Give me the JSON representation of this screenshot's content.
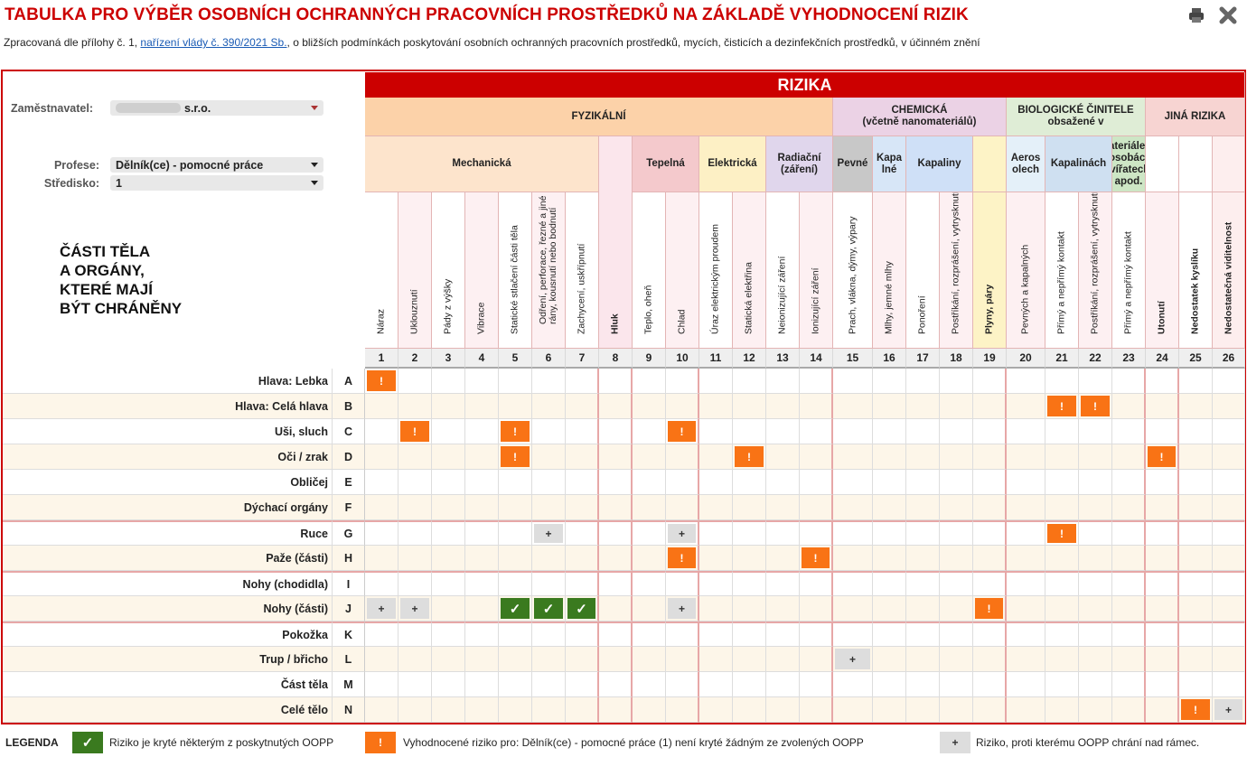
{
  "title": "TABULKA PRO VÝBĚR OSOBNÍCH OCHRANNÝCH PRACOVNÍCH PROSTŘEDKŮ NA ZÁKLADĚ VYHODNOCENÍ RIZIK",
  "subtitle": {
    "before": "Zpracovaná dle přílohy č. 1, ",
    "link": "nařízení vlády č. 390/2021 Sb.",
    "after": ", o bližších podmínkách poskytování osobních ochranných pracovních prostředků, mycích, čisticích a dezinfekčních prostředků, v účinném znění"
  },
  "controls": {
    "employer_label": "Zaměstnavatel:",
    "employer_value": "s.r.o.",
    "profession_label": "Profese:",
    "profession_value": "Dělník(ce) - pomocné práce",
    "center_label": "Středisko:",
    "center_value": "1"
  },
  "body_parts_heading": [
    "ČÁSTI TĚLA",
    "A ORGÁNY,",
    "KTERÉ MAJÍ",
    "BÝT CHRÁNĚNY"
  ],
  "header": {
    "rizika": "RIZIKA",
    "groups": [
      {
        "label": "FYZIKÁLNÍ",
        "from": 1,
        "to": 14,
        "color": "#fcd2a9"
      },
      {
        "label": "CHEMICKÁ\n(včetně nanomateriálů)",
        "from": 15,
        "to": 19,
        "color": "#ebd2e5"
      },
      {
        "label": "BIOLOGICKÉ ČINITELE\nobsažené v",
        "from": 20,
        "to": 23,
        "color": "#dfedd6"
      },
      {
        "label": "JINÁ RIZIKA",
        "from": 24,
        "to": 26,
        "color": "#f7d4d2"
      }
    ],
    "subgroups": [
      {
        "label": "Mechanická",
        "from": 1,
        "to": 7,
        "color": "#fde4cc"
      },
      {
        "label": "",
        "from": 8,
        "to": 8,
        "color": "#fbe6ec"
      },
      {
        "label": "Tepelná",
        "from": 9,
        "to": 10,
        "color": "#f4c9cc"
      },
      {
        "label": "Elektrická",
        "from": 11,
        "to": 12,
        "color": "#fdf0c5"
      },
      {
        "label": "Radiační\n(záření)",
        "from": 13,
        "to": 14,
        "color": "#e0d6ec"
      },
      {
        "label": "Pevné",
        "from": 15,
        "to": 15,
        "color": "#c8c8c8"
      },
      {
        "label": "Kapa\nlné",
        "from": 16,
        "to": 16,
        "color": "#d7e6f7"
      },
      {
        "label": "Kapaliny",
        "from": 17,
        "to": 18,
        "color": "#cfe0f7"
      },
      {
        "label": "",
        "from": 19,
        "to": 19,
        "color": "#fdf3c6"
      },
      {
        "label": "Aeros\nolech",
        "from": 20,
        "to": 20,
        "color": "#e4f0f9"
      },
      {
        "label": "Kapalinách",
        "from": 21,
        "to": 22,
        "color": "#cfe0f1"
      },
      {
        "label": "Materiálech\n, osobách,\nzvířatech,\napod.",
        "from": 23,
        "to": 23,
        "color": "#cde6c5"
      },
      {
        "label": "",
        "from": 24,
        "to": 24,
        "color": "#ffffff"
      },
      {
        "label": "",
        "from": 25,
        "to": 25,
        "color": "#ffffff"
      },
      {
        "label": "",
        "from": 26,
        "to": 26,
        "color": "#fdeeee"
      }
    ],
    "columns": [
      {
        "num": "1",
        "label": "Náraz",
        "bold": false
      },
      {
        "num": "2",
        "label": "Uklouznutí",
        "bold": false
      },
      {
        "num": "3",
        "label": "Pády z výšky",
        "bold": false
      },
      {
        "num": "4",
        "label": "Vibrace",
        "bold": false
      },
      {
        "num": "5",
        "label": "Statické stlačení části těla",
        "bold": false
      },
      {
        "num": "6",
        "label": "Odření, perforace, řezné a jiné rány, kousnutí nebo bodnutí",
        "bold": false
      },
      {
        "num": "7",
        "label": "Zachycení, uskřípnutí",
        "bold": false
      },
      {
        "num": "8",
        "label": "Hluk",
        "bold": true
      },
      {
        "num": "9",
        "label": "Teplo, oheň",
        "bold": false
      },
      {
        "num": "10",
        "label": "Chlad",
        "bold": false
      },
      {
        "num": "11",
        "label": "Úraz elektrickým proudem",
        "bold": false
      },
      {
        "num": "12",
        "label": "Statická elektřina",
        "bold": false
      },
      {
        "num": "13",
        "label": "Neionizující záření",
        "bold": false
      },
      {
        "num": "14",
        "label": "Ionizující záření",
        "bold": false
      },
      {
        "num": "15",
        "label": "Prach, vlákna, dýmy, výpary",
        "bold": false
      },
      {
        "num": "16",
        "label": "Mlhy, jemné mlhy",
        "bold": false
      },
      {
        "num": "17",
        "label": "Ponoření",
        "bold": false
      },
      {
        "num": "18",
        "label": "Postříkání, rozprášení, vytrysknutí",
        "bold": false
      },
      {
        "num": "19",
        "label": "Plyny, páry",
        "bold": true
      },
      {
        "num": "20",
        "label": "Pevných a kapalných",
        "bold": false
      },
      {
        "num": "21",
        "label": "Přímý a nepřímý kontakt",
        "bold": false
      },
      {
        "num": "22",
        "label": "Postříkání, rozprášení, vytrysknutí",
        "bold": false
      },
      {
        "num": "23",
        "label": "Přímý a nepřímý kontakt",
        "bold": false
      },
      {
        "num": "24",
        "label": "Utonutí",
        "bold": true
      },
      {
        "num": "25",
        "label": "Nedostatek kyslíku",
        "bold": true
      },
      {
        "num": "26",
        "label": "Nedostatečná viditelnost",
        "bold": true
      }
    ]
  },
  "rows": [
    {
      "label": "Hlava: Lebka",
      "letter": "A"
    },
    {
      "label": "Hlava: Celá hlava",
      "letter": "B"
    },
    {
      "label": "Uši, sluch",
      "letter": "C"
    },
    {
      "label": "Oči / zrak",
      "letter": "D"
    },
    {
      "label": "Obličej",
      "letter": "E"
    },
    {
      "label": "Dýchací orgány",
      "letter": "F"
    },
    {
      "label": "Ruce",
      "letter": "G"
    },
    {
      "label": "Paže (části)",
      "letter": "H"
    },
    {
      "label": "Nohy (chodidla)",
      "letter": "I"
    },
    {
      "label": "Nohy (části)",
      "letter": "J"
    },
    {
      "label": "Pokožka",
      "letter": "K"
    },
    {
      "label": "Trup / břicho",
      "letter": "L"
    },
    {
      "label": "Část těla",
      "letter": "M"
    },
    {
      "label": "Celé tělo",
      "letter": "N"
    }
  ],
  "marks": [
    {
      "row": "A",
      "col": 1,
      "type": "warn"
    },
    {
      "row": "B",
      "col": 21,
      "type": "warn"
    },
    {
      "row": "B",
      "col": 22,
      "type": "warn"
    },
    {
      "row": "C",
      "col": 2,
      "type": "warn"
    },
    {
      "row": "C",
      "col": 5,
      "type": "warn"
    },
    {
      "row": "C",
      "col": 10,
      "type": "warn"
    },
    {
      "row": "D",
      "col": 5,
      "type": "warn"
    },
    {
      "row": "D",
      "col": 12,
      "type": "warn"
    },
    {
      "row": "D",
      "col": 24,
      "type": "warn"
    },
    {
      "row": "G",
      "col": 6,
      "type": "plus"
    },
    {
      "row": "G",
      "col": 10,
      "type": "plus"
    },
    {
      "row": "G",
      "col": 21,
      "type": "warn"
    },
    {
      "row": "H",
      "col": 10,
      "type": "warn"
    },
    {
      "row": "H",
      "col": 14,
      "type": "warn"
    },
    {
      "row": "J",
      "col": 1,
      "type": "plus"
    },
    {
      "row": "J",
      "col": 2,
      "type": "plus"
    },
    {
      "row": "J",
      "col": 5,
      "type": "ok"
    },
    {
      "row": "J",
      "col": 6,
      "type": "ok"
    },
    {
      "row": "J",
      "col": 7,
      "type": "ok"
    },
    {
      "row": "J",
      "col": 10,
      "type": "plus"
    },
    {
      "row": "J",
      "col": 19,
      "type": "warn"
    },
    {
      "row": "L",
      "col": 15,
      "type": "plus"
    },
    {
      "row": "N",
      "col": 25,
      "type": "warn"
    },
    {
      "row": "N",
      "col": 26,
      "type": "plus"
    }
  ],
  "mark_symbols": {
    "warn": "!",
    "ok": "✓",
    "plus": "+"
  },
  "legend": {
    "label": "LEGENDA",
    "ok_text": "Riziko je kryté některým z poskytnutých OOPP",
    "warn_text": "Vyhodnocené riziko pro: Dělník(ce) - pomocné práce (1) není kryté žádným ze zvolených OOPP",
    "plus_text": "Riziko, proti kterému OOPP chrání nad rámec."
  },
  "colors": {
    "accent": "#cc0000",
    "warn": "#f97315",
    "ok": "#3a7a1f",
    "plus": "#dddddd",
    "row_alt": "#fdf6e9"
  }
}
